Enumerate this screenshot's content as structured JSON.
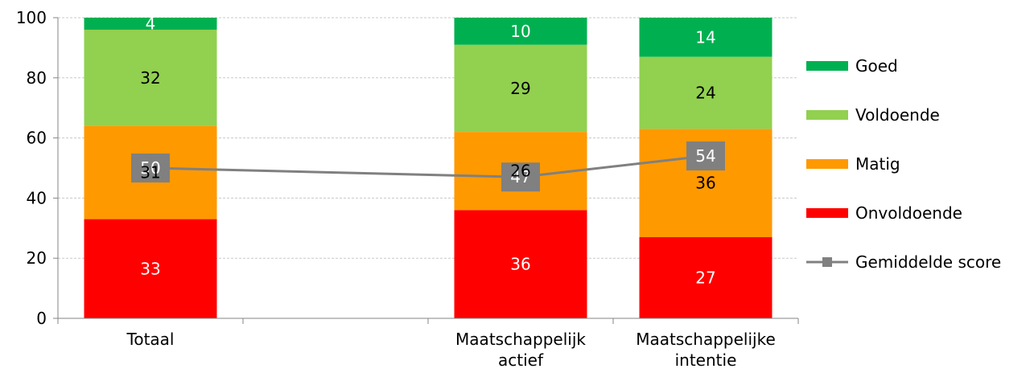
{
  "chart_data": {
    "type": "bar",
    "stacked": true,
    "categories": [
      [
        "Totaal"
      ],
      [],
      [
        "Maatschappelijk",
        "actief"
      ],
      [
        "Maatschappelijke",
        "intentie"
      ]
    ],
    "ylim": [
      0,
      100
    ],
    "yticks": [
      "0",
      "20",
      "40",
      "60",
      "80",
      "100"
    ],
    "grid": true,
    "legend_position": "right",
    "series": [
      {
        "name": "Onvoldoende",
        "color": "#ff0000",
        "label_color": "#ffffff",
        "values": [
          33,
          null,
          36,
          27
        ]
      },
      {
        "name": "Matig",
        "color": "#ff9900",
        "label_color": "#000000",
        "values": [
          31,
          null,
          26,
          36
        ]
      },
      {
        "name": "Voldoende",
        "color": "#92d050",
        "label_color": "#000000",
        "values": [
          32,
          null,
          29,
          24
        ]
      },
      {
        "name": "Goed",
        "color": "#00b050",
        "label_color": "#ffffff",
        "values": [
          4,
          null,
          10,
          14
        ]
      }
    ],
    "line_series": {
      "name": "Gemiddelde score",
      "color": "#808080",
      "values": [
        50,
        null,
        47,
        54
      ]
    }
  }
}
